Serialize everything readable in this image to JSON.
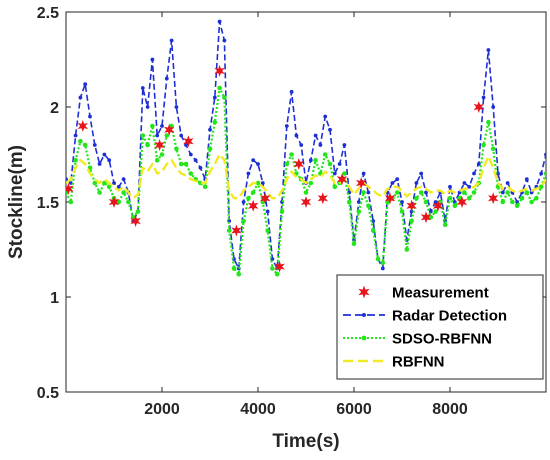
{
  "chart_data": {
    "type": "line",
    "title": "",
    "xlabel": "Time(s)",
    "ylabel": "Stockline(m)",
    "xlim": [
      0,
      10000
    ],
    "ylim": [
      0.5,
      2.5
    ],
    "xticks": [
      2000,
      4000,
      6000,
      8000
    ],
    "xtick_labels": [
      "2000",
      "4000",
      "6000",
      "8000"
    ],
    "yticks": [
      0.5,
      1,
      1.5,
      2,
      2.5
    ],
    "ytick_labels": [
      "0.5",
      "1",
      "1.5",
      "2",
      "2.5"
    ],
    "grid": false,
    "legend_position": "bottom-right",
    "x": [
      0,
      100,
      200,
      300,
      400,
      500,
      600,
      700,
      800,
      900,
      1000,
      1100,
      1200,
      1300,
      1400,
      1500,
      1600,
      1700,
      1800,
      1900,
      2000,
      2100,
      2200,
      2300,
      2400,
      2500,
      2600,
      2700,
      2800,
      2900,
      3000,
      3100,
      3200,
      3300,
      3400,
      3500,
      3600,
      3700,
      3800,
      3900,
      4000,
      4100,
      4200,
      4300,
      4400,
      4500,
      4600,
      4700,
      4800,
      4900,
      5000,
      5100,
      5200,
      5300,
      5400,
      5500,
      5600,
      5700,
      5800,
      5900,
      6000,
      6100,
      6200,
      6300,
      6400,
      6500,
      6600,
      6700,
      6800,
      6900,
      7000,
      7100,
      7200,
      7300,
      7400,
      7500,
      7600,
      7700,
      7800,
      7900,
      8000,
      8100,
      8200,
      8300,
      8400,
      8500,
      8600,
      8700,
      8800,
      8900,
      9000,
      9100,
      9200,
      9300,
      9400,
      9500,
      9600,
      9700,
      9800,
      9900,
      10000
    ],
    "series": [
      {
        "name": "Radar Detection",
        "color": "#1f2fd6",
        "style": "dash-dot-marker",
        "values": [
          1.62,
          1.6,
          1.85,
          2.05,
          2.12,
          1.95,
          1.8,
          1.7,
          1.75,
          1.72,
          1.6,
          1.58,
          1.62,
          1.55,
          1.4,
          1.45,
          2.1,
          2.0,
          2.25,
          1.85,
          1.9,
          2.15,
          2.35,
          2.0,
          1.85,
          1.8,
          1.75,
          1.72,
          1.68,
          1.62,
          1.88,
          2.05,
          2.45,
          2.35,
          1.4,
          1.2,
          1.15,
          1.5,
          1.65,
          1.72,
          1.7,
          1.6,
          1.45,
          1.2,
          1.15,
          1.5,
          1.9,
          2.08,
          1.85,
          1.8,
          1.6,
          1.72,
          1.85,
          1.8,
          1.95,
          1.88,
          1.65,
          1.7,
          1.8,
          1.55,
          1.3,
          1.5,
          1.65,
          1.55,
          1.4,
          1.2,
          1.15,
          1.55,
          1.6,
          1.62,
          1.5,
          1.3,
          1.45,
          1.6,
          1.65,
          1.55,
          1.45,
          1.5,
          1.55,
          1.4,
          1.58,
          1.5,
          1.55,
          1.6,
          1.58,
          1.65,
          1.7,
          2.05,
          2.3,
          2.0,
          1.65,
          1.55,
          1.6,
          1.55,
          1.5,
          1.55,
          1.62,
          1.55,
          1.58,
          1.65,
          1.75
        ]
      },
      {
        "name": "SDSO-RBFNN",
        "color": "#22e61a",
        "style": "dotted-marker",
        "values": [
          1.55,
          1.5,
          1.72,
          1.82,
          1.8,
          1.68,
          1.6,
          1.55,
          1.6,
          1.58,
          1.52,
          1.5,
          1.55,
          1.5,
          1.42,
          1.45,
          1.85,
          1.8,
          1.9,
          1.72,
          1.75,
          1.85,
          1.9,
          1.78,
          1.7,
          1.7,
          1.65,
          1.62,
          1.6,
          1.58,
          1.78,
          1.92,
          2.1,
          2.05,
          1.35,
          1.15,
          1.12,
          1.4,
          1.52,
          1.55,
          1.6,
          1.5,
          1.35,
          1.15,
          1.12,
          1.45,
          1.7,
          1.75,
          1.65,
          1.62,
          1.55,
          1.6,
          1.72,
          1.65,
          1.75,
          1.7,
          1.58,
          1.6,
          1.65,
          1.5,
          1.28,
          1.45,
          1.55,
          1.48,
          1.35,
          1.2,
          1.18,
          1.5,
          1.52,
          1.55,
          1.45,
          1.25,
          1.4,
          1.52,
          1.55,
          1.5,
          1.42,
          1.45,
          1.5,
          1.38,
          1.52,
          1.48,
          1.52,
          1.55,
          1.52,
          1.55,
          1.6,
          1.8,
          1.92,
          1.78,
          1.58,
          1.5,
          1.55,
          1.5,
          1.48,
          1.52,
          1.55,
          1.5,
          1.52,
          1.58,
          1.65
        ]
      },
      {
        "name": "RBFNN",
        "color": "#f2ea24",
        "style": "dashed",
        "values": [
          1.6,
          1.62,
          1.68,
          1.72,
          1.7,
          1.65,
          1.62,
          1.6,
          1.62,
          1.6,
          1.58,
          1.56,
          1.58,
          1.55,
          1.52,
          1.54,
          1.68,
          1.66,
          1.7,
          1.65,
          1.66,
          1.7,
          1.72,
          1.68,
          1.65,
          1.64,
          1.62,
          1.61,
          1.6,
          1.6,
          1.66,
          1.7,
          1.75,
          1.72,
          1.56,
          1.52,
          1.52,
          1.56,
          1.58,
          1.6,
          1.6,
          1.58,
          1.55,
          1.52,
          1.52,
          1.56,
          1.62,
          1.66,
          1.63,
          1.62,
          1.6,
          1.62,
          1.64,
          1.63,
          1.66,
          1.64,
          1.6,
          1.6,
          1.62,
          1.58,
          1.54,
          1.57,
          1.6,
          1.58,
          1.56,
          1.54,
          1.53,
          1.57,
          1.58,
          1.58,
          1.56,
          1.53,
          1.55,
          1.57,
          1.58,
          1.57,
          1.55,
          1.56,
          1.56,
          1.54,
          1.56,
          1.55,
          1.56,
          1.57,
          1.57,
          1.58,
          1.6,
          1.68,
          1.74,
          1.68,
          1.6,
          1.57,
          1.58,
          1.56,
          1.55,
          1.56,
          1.57,
          1.56,
          1.57,
          1.58,
          1.62
        ]
      }
    ],
    "measurement": {
      "name": "Measurement",
      "color": "#e8141c",
      "marker": "star",
      "x": [
        50,
        350,
        1000,
        1450,
        1950,
        2150,
        2550,
        3200,
        3550,
        3900,
        4150,
        4450,
        4850,
        5000,
        5350,
        5750,
        6150,
        6750,
        7200,
        7500,
        7750,
        8250,
        8600,
        8900
      ],
      "y": [
        1.57,
        1.9,
        1.5,
        1.4,
        1.8,
        1.88,
        1.82,
        2.19,
        1.35,
        1.48,
        1.52,
        1.16,
        1.7,
        1.5,
        1.52,
        1.62,
        1.6,
        1.52,
        1.48,
        1.42,
        1.48,
        1.5,
        2.0,
        1.52
      ]
    }
  }
}
